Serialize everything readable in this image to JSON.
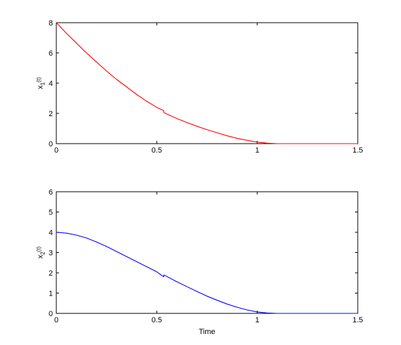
{
  "chart_data": [
    {
      "type": "line",
      "ylabel": "x",
      "ylabel_sub": "1",
      "ylabel_suffix": "(t)",
      "xlabel": "",
      "xlim": [
        0,
        1.5
      ],
      "ylim": [
        0,
        8
      ],
      "xticks": [
        0,
        0.5,
        1,
        1.5
      ],
      "xtick_labels": [
        "0",
        "0.5",
        "1",
        "1.5"
      ],
      "yticks": [
        0,
        2,
        4,
        6,
        8
      ],
      "ytick_labels": [
        "0",
        "2",
        "4",
        "6",
        "8"
      ],
      "grid": false,
      "series": [
        {
          "color": "#ff0000",
          "segments": [
            {
              "x": [
                0,
                0.05,
                0.1,
                0.15,
                0.2,
                0.25,
                0.3,
                0.35,
                0.4,
                0.45,
                0.5,
                0.535
              ],
              "y": [
                8,
                7.3,
                6.65,
                6.0,
                5.4,
                4.8,
                4.25,
                3.75,
                3.25,
                2.8,
                2.4,
                2.18
              ]
            },
            {
              "x": [
                0.535,
                0.6,
                0.65,
                0.7,
                0.75,
                0.8,
                0.85,
                0.9,
                0.95,
                1.0,
                1.05,
                1.1,
                1.5
              ],
              "y": [
                2.05,
                1.66,
                1.4,
                1.15,
                0.92,
                0.72,
                0.52,
                0.35,
                0.22,
                0.1,
                0.03,
                0,
                0
              ]
            }
          ]
        }
      ]
    },
    {
      "type": "line",
      "ylabel": "x",
      "ylabel_sub": "2",
      "ylabel_suffix": "(t)",
      "xlabel": "Time",
      "xlim": [
        0,
        1.5
      ],
      "ylim": [
        0,
        6
      ],
      "xticks": [
        0,
        0.5,
        1,
        1.5
      ],
      "xtick_labels": [
        "0",
        "0.5",
        "1",
        "1.5"
      ],
      "yticks": [
        0,
        1,
        2,
        3,
        4,
        5,
        6
      ],
      "ytick_labels": [
        "0",
        "1",
        "2",
        "3",
        "4",
        "5",
        "6"
      ],
      "grid": false,
      "series": [
        {
          "color": "#0000ff",
          "segments": [
            {
              "x": [
                0,
                0.05,
                0.1,
                0.15,
                0.2,
                0.25,
                0.3,
                0.35,
                0.4,
                0.45,
                0.5,
                0.535
              ],
              "y": [
                4.0,
                3.96,
                3.86,
                3.72,
                3.52,
                3.3,
                3.05,
                2.8,
                2.55,
                2.3,
                2.05,
                1.8
              ]
            },
            {
              "x": [
                0.535,
                0.6,
                0.65,
                0.7,
                0.75,
                0.8,
                0.85,
                0.9,
                0.95,
                1.0,
                1.05,
                1.1,
                1.5
              ],
              "y": [
                1.9,
                1.56,
                1.32,
                1.08,
                0.85,
                0.65,
                0.46,
                0.3,
                0.17,
                0.07,
                0.02,
                0,
                0
              ]
            }
          ]
        }
      ]
    }
  ]
}
